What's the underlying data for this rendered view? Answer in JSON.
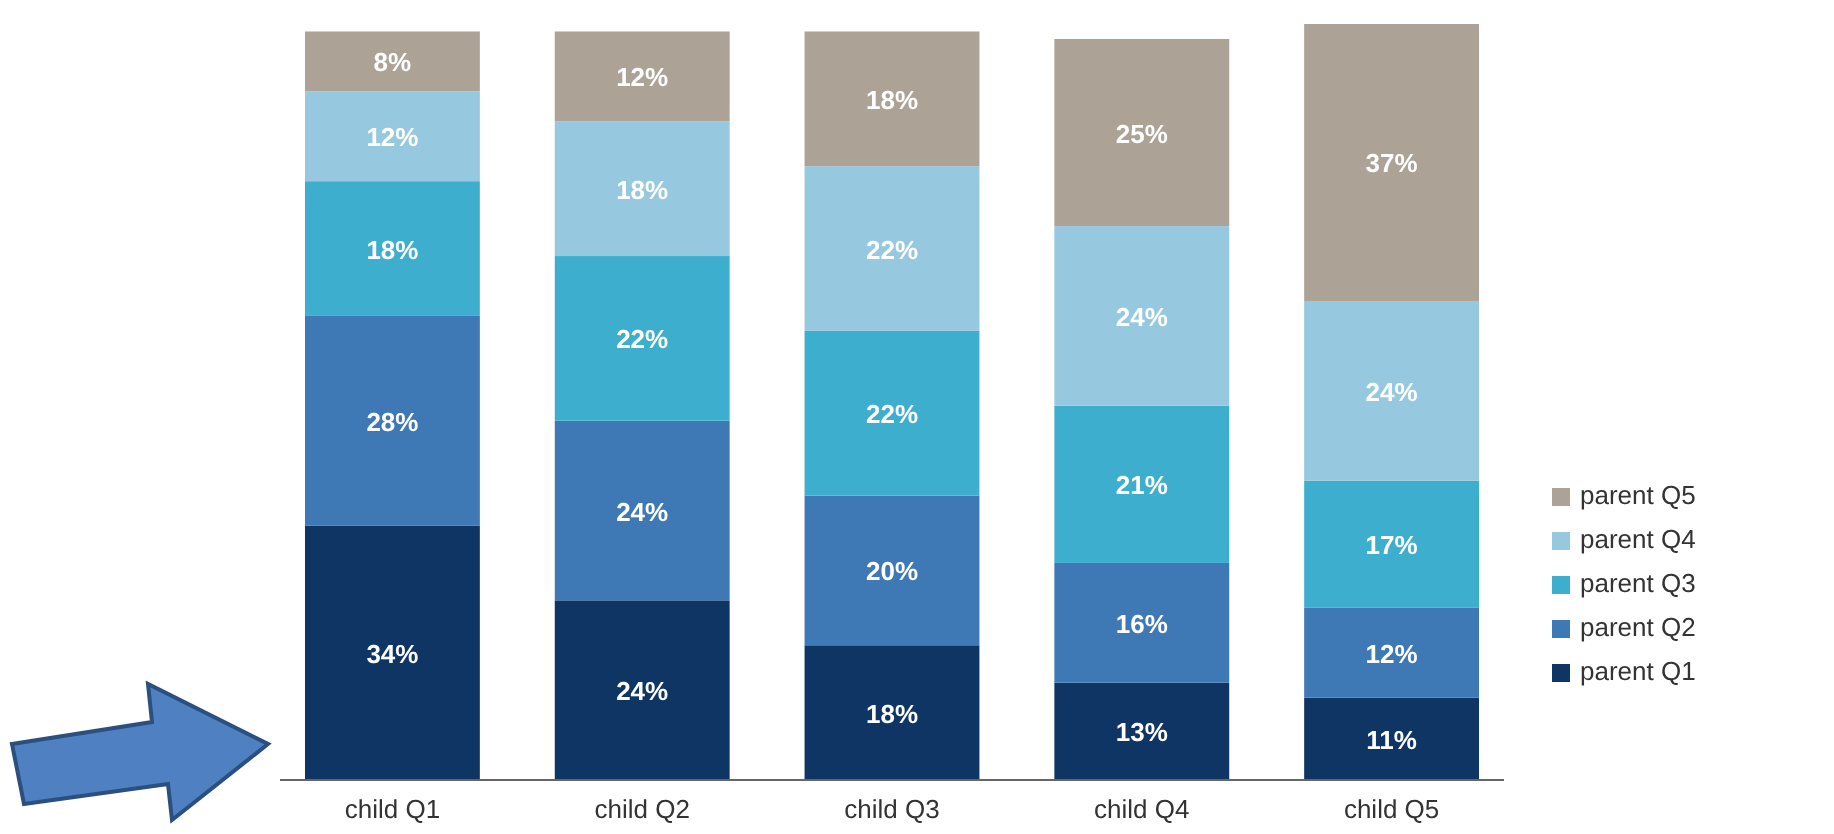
{
  "chart_data": {
    "type": "bar",
    "stacked": true,
    "categories": [
      "child Q1",
      "child Q2",
      "child Q3",
      "child Q4",
      "child Q5"
    ],
    "series": [
      {
        "name": "parent Q1",
        "color": "#0e3563",
        "values": [
          34,
          24,
          18,
          13,
          11
        ],
        "value_labels": [
          "34%",
          "24%",
          "18%",
          "13%",
          "11%"
        ]
      },
      {
        "name": "parent Q2",
        "color": "#3f79b5",
        "values": [
          28,
          24,
          20,
          16,
          12
        ],
        "value_labels": [
          "28%",
          "24%",
          "20%",
          "16%",
          "12%"
        ]
      },
      {
        "name": "parent Q3",
        "color": "#3eaecf",
        "values": [
          18,
          22,
          22,
          21,
          17
        ],
        "value_labels": [
          "18%",
          "22%",
          "22%",
          "21%",
          "17%"
        ]
      },
      {
        "name": "parent Q4",
        "color": "#96c8df",
        "values": [
          12,
          18,
          22,
          24,
          24
        ],
        "value_labels": [
          "12%",
          "18%",
          "22%",
          "24%",
          "24%"
        ]
      },
      {
        "name": "parent Q5",
        "color": "#aca296",
        "values": [
          8,
          12,
          18,
          25,
          37
        ],
        "value_labels": [
          "8%",
          "12%",
          "18%",
          "25%",
          "37%"
        ]
      }
    ],
    "legend": "right"
  }
}
